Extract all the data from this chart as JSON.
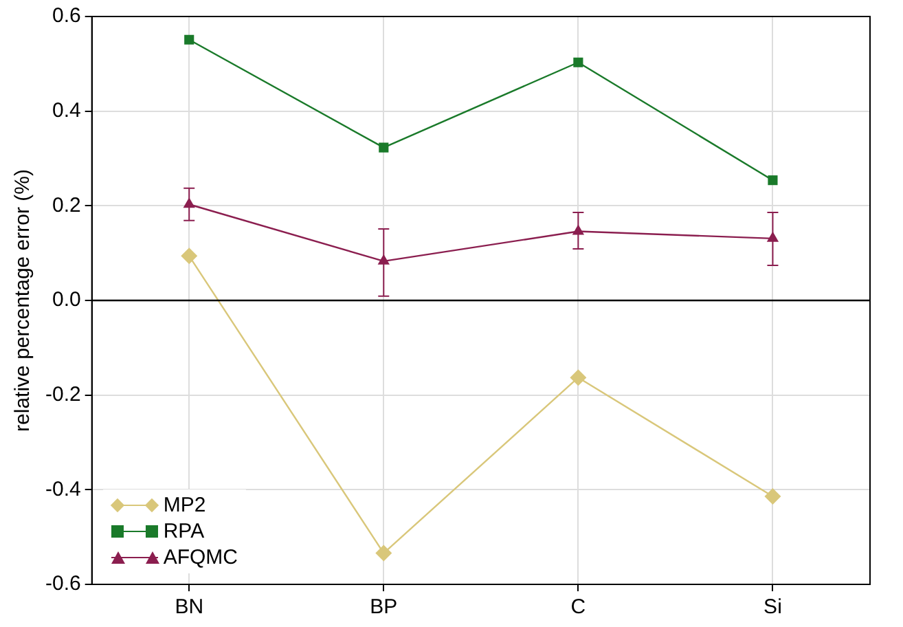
{
  "chart_data": {
    "type": "line",
    "ylabel": "relative percentage error (%)",
    "categories": [
      "BN",
      "BP",
      "C",
      "Si"
    ],
    "series": [
      {
        "name": "MP2",
        "color": "#d9c77a",
        "marker": "diamond",
        "values": [
          0.094,
          -0.534,
          -0.163,
          -0.414
        ]
      },
      {
        "name": "RPA",
        "color": "#1a7a2a",
        "marker": "square",
        "values": [
          0.551,
          0.323,
          0.503,
          0.254
        ]
      },
      {
        "name": "AFQMC",
        "color": "#8b1e4f",
        "marker": "triangle",
        "values": [
          0.203,
          0.083,
          0.146,
          0.131
        ],
        "errors": [
          [
            0.169,
            0.237
          ],
          [
            0.009,
            0.151
          ],
          [
            0.109,
            0.186
          ],
          [
            0.074,
            0.186
          ]
        ]
      }
    ],
    "ylim": [
      -0.6,
      0.6
    ],
    "yticks": [
      -0.6,
      -0.4,
      -0.2,
      {
        "value": 0,
        "label": "0.0"
      },
      0.2,
      0.4,
      0.6
    ],
    "ref_lines": [
      {
        "axis": "y",
        "value": 0,
        "color": "#000000"
      }
    ],
    "grid": true,
    "legend": "bottom left",
    "line_style": "solid"
  }
}
